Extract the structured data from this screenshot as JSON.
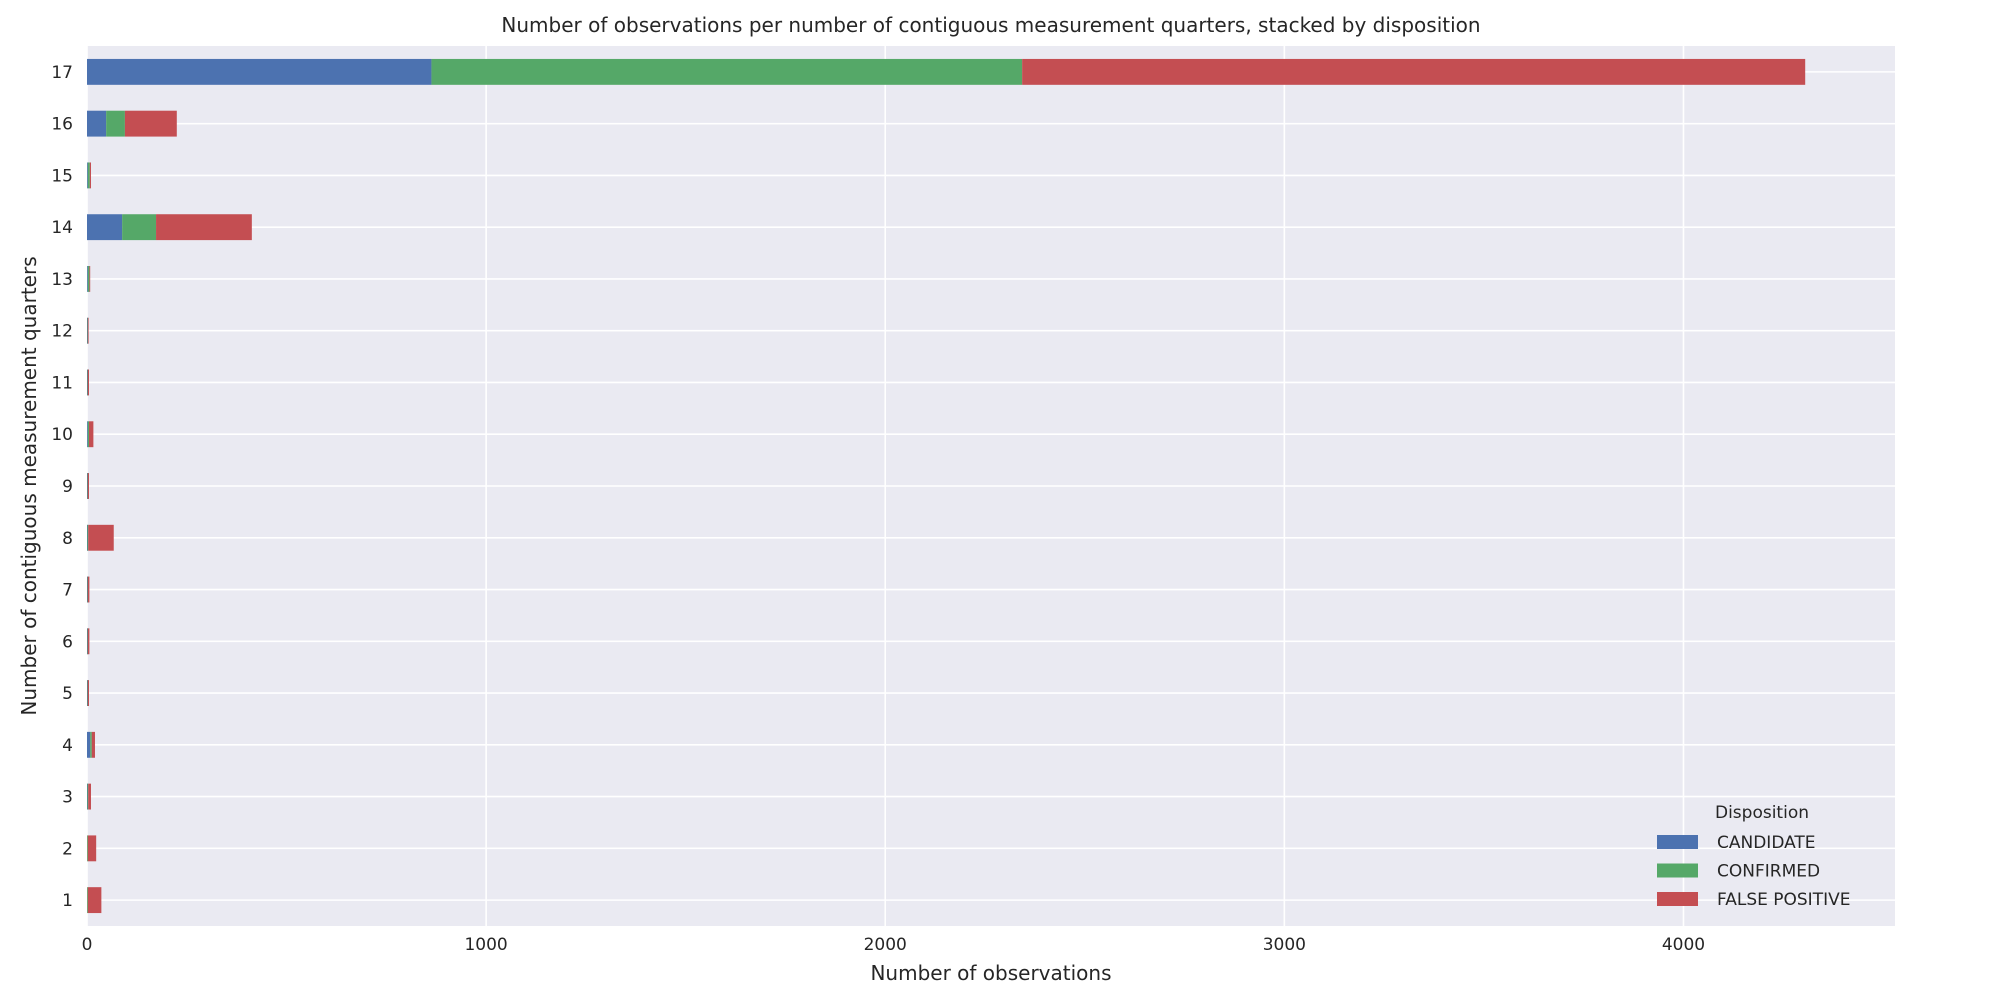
{
  "chart_data": {
    "type": "bar",
    "orientation": "horizontal",
    "stacked": true,
    "title": "Number of observations per number of contiguous measurement quarters, stacked by disposition",
    "xlabel": "Number of observations",
    "ylabel": "Number of contiguous measurement quarters",
    "xlim": [
      0,
      4530
    ],
    "x_ticks": [
      0,
      1000,
      2000,
      3000,
      4000
    ],
    "grid": true,
    "legend": {
      "title": "Disposition",
      "placement": "bottom-right"
    },
    "categories": [
      "1",
      "2",
      "3",
      "4",
      "5",
      "6",
      "7",
      "8",
      "9",
      "10",
      "11",
      "12",
      "13",
      "14",
      "15",
      "16",
      "17"
    ],
    "series": [
      {
        "name": "CANDIDATE",
        "color": "#4c72b0",
        "values": [
          0,
          0,
          1,
          8,
          1,
          1,
          1,
          1,
          1,
          2,
          1,
          1,
          2,
          88,
          2,
          48,
          863
        ]
      },
      {
        "name": "CONFIRMED",
        "color": "#55a868",
        "values": [
          2,
          2,
          2,
          4,
          1,
          1,
          1,
          2,
          1,
          3,
          1,
          1,
          4,
          85,
          5,
          47,
          1480
        ]
      },
      {
        "name": "FALSE POSITIVE",
        "color": "#c44e52",
        "values": [
          34,
          21,
          7,
          8,
          3,
          4,
          4,
          64,
          3,
          11,
          3,
          2,
          1,
          240,
          3,
          130,
          1962
        ]
      }
    ]
  },
  "style": {
    "plot_background": "#eaeaf2",
    "grid_color": "#ffffff"
  }
}
